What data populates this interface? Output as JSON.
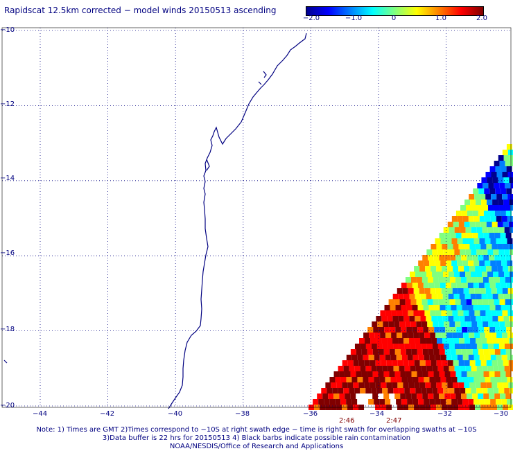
{
  "title": "Rapidscat 12.5km corrected − model winds 20150513 ascending",
  "colorbar": {
    "labels": [
      "−2.0",
      "−1.0",
      "0",
      "1.0",
      "2.0"
    ],
    "values": [
      -2.0,
      -1.0,
      0,
      1.0,
      2.0
    ],
    "colors": [
      "#00008f",
      "#0000ff",
      "#0080ff",
      "#00ffff",
      "#80ff80",
      "#ffff00",
      "#ff8000",
      "#ff0000",
      "#800000"
    ]
  },
  "map": {
    "lon_labels": [
      "−44",
      "−42",
      "−40",
      "−38",
      "−36",
      "−34",
      "−32",
      "−30"
    ],
    "lon_values": [
      -44,
      -42,
      -40,
      -38,
      -36,
      -34,
      -32,
      -30
    ],
    "lat_labels": [
      "−10",
      "−12",
      "−14",
      "−16",
      "−18",
      "−20"
    ],
    "lat_values": [
      -10,
      -12,
      -14,
      -16,
      -18,
      -20
    ],
    "lon_range": [
      -45,
      -30
    ],
    "lat_range": [
      -20,
      -10
    ],
    "coast_color": "#000080",
    "grid": "dotted"
  },
  "swath_times": [
    {
      "label": "2:46",
      "lon": -34.8
    },
    {
      "label": "2:47",
      "lon": -33.4
    }
  ],
  "notes": {
    "line1": "Note: 1) Times are GMT 2)Times correspond to −10S at right swath edge − time is right swath for overlapping swaths at −10S",
    "line2": "3)Data buffer is 22 hrs for 20150513 4) Black barbs indicate possible rain contamination",
    "line3": "NOAA/NESDIS/Office of Research and Applications"
  }
}
